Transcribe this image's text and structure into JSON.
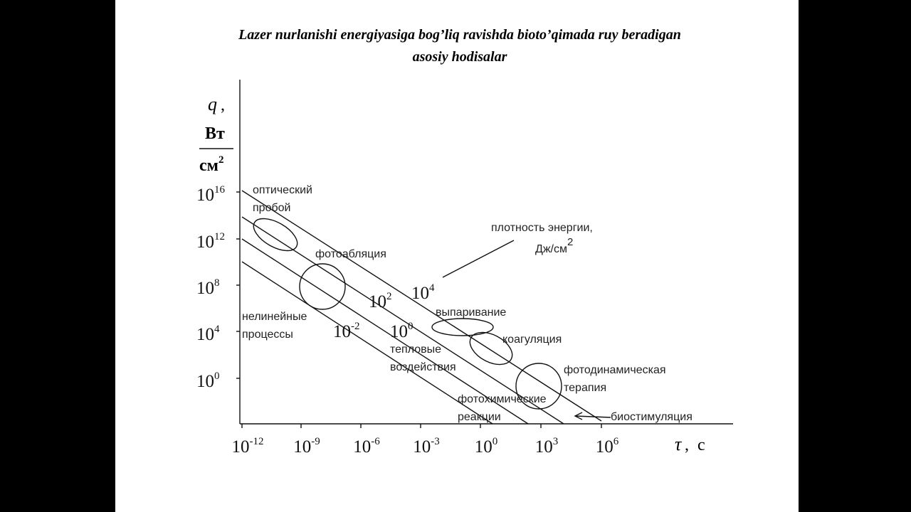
{
  "title": {
    "line1": "Lazer nurlanishi energiyasiga bog’liq ravishda bioto’qimada ruy beradigan",
    "line2": "asosiy hodisalar"
  },
  "y_axis": {
    "symbol": "q",
    "separator": ",",
    "numerator": "Вт",
    "denominator": "см",
    "denominator_exp": "2"
  },
  "x_axis": {
    "symbol": "τ",
    "separator": ",",
    "unit": "с"
  },
  "y_ticks": [
    {
      "base": "10",
      "exp": "16"
    },
    {
      "base": "10",
      "exp": "12"
    },
    {
      "base": "10",
      "exp": "8"
    },
    {
      "base": "10",
      "exp": "4"
    },
    {
      "base": "10",
      "exp": "0"
    }
  ],
  "x_ticks": [
    {
      "base": "10",
      "exp": "-12"
    },
    {
      "base": "10",
      "exp": "-9"
    },
    {
      "base": "10",
      "exp": "-6"
    },
    {
      "base": "10",
      "exp": "-3"
    },
    {
      "base": "10",
      "exp": "0"
    },
    {
      "base": "10",
      "exp": "3"
    },
    {
      "base": "10",
      "exp": "6"
    }
  ],
  "line_labels": [
    {
      "base": "10",
      "exp": "4"
    },
    {
      "base": "10",
      "exp": "2"
    },
    {
      "base": "10",
      "exp": "0"
    },
    {
      "base": "10",
      "exp": "-2"
    }
  ],
  "energy_label": {
    "line1": "плотность энергии,",
    "line2": "Дж/см",
    "exp": "2"
  },
  "regions": [
    {
      "lines": [
        "оптический",
        "пробой"
      ]
    },
    {
      "lines": [
        "фотоабляция"
      ]
    },
    {
      "lines": [
        "нелинейные",
        "процессы"
      ]
    },
    {
      "lines": [
        "выпаривание"
      ]
    },
    {
      "lines": [
        "коагуляция"
      ]
    },
    {
      "lines": [
        "тепловые",
        "воздействия"
      ]
    },
    {
      "lines": [
        "фотодинамическая",
        "терапия"
      ]
    },
    {
      "lines": [
        "фотохимические",
        "реакции"
      ]
    },
    {
      "lines": [
        "биостимуляция"
      ]
    }
  ]
}
